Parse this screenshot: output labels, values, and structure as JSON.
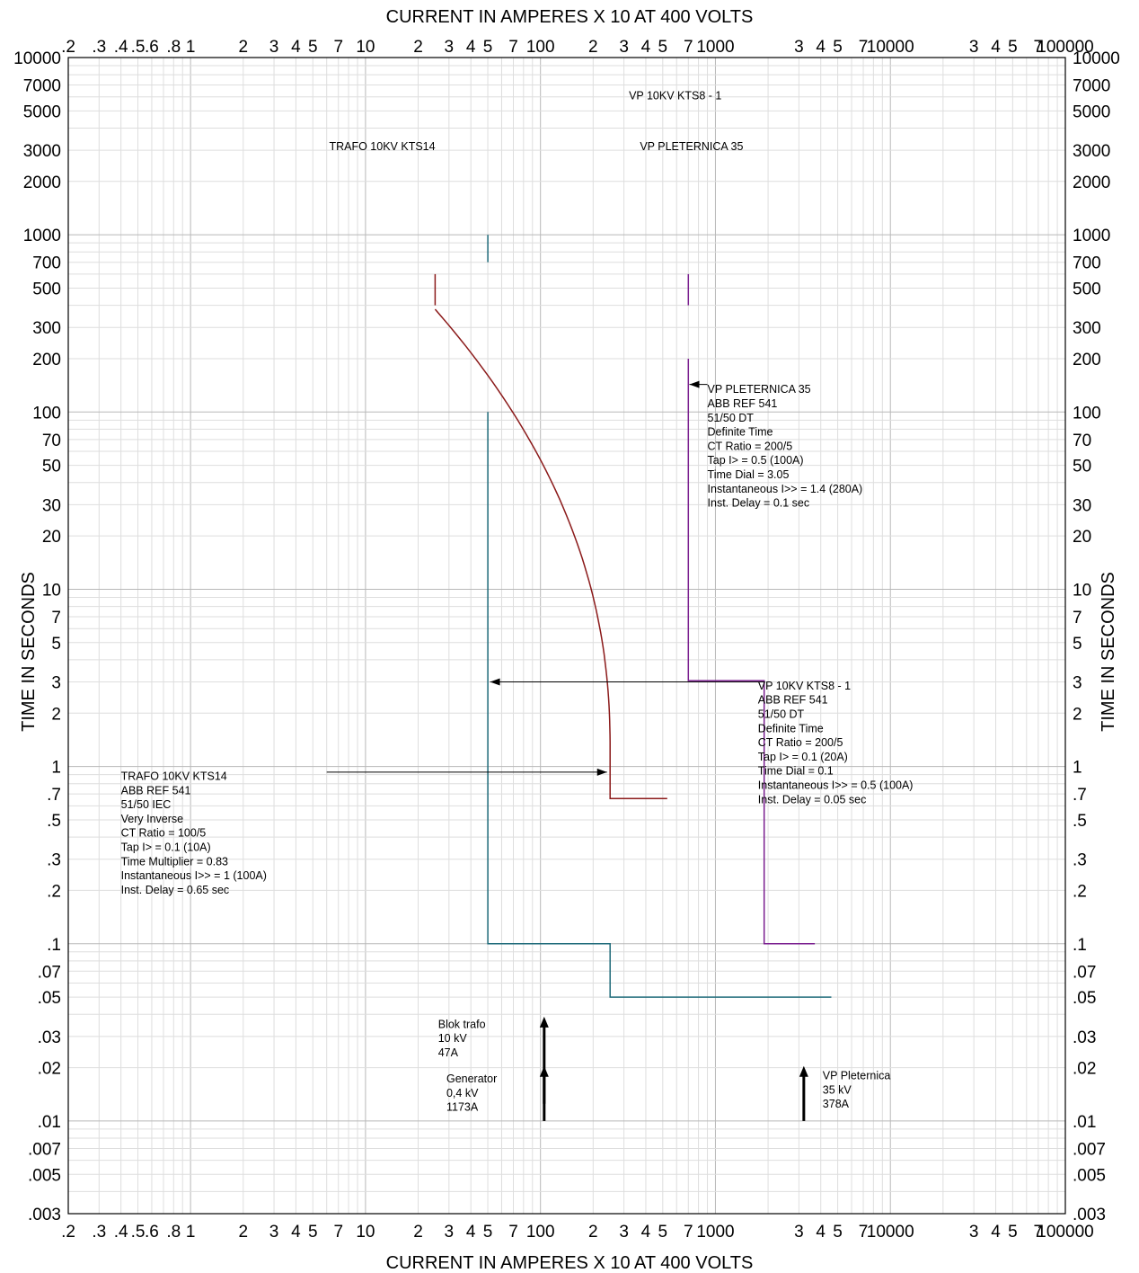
{
  "chart_data": {
    "type": "line",
    "x_scale": "log",
    "y_scale": "log",
    "xlim": [
      0.2,
      100000
    ],
    "ylim": [
      0.003,
      10000
    ],
    "grid": true,
    "x_axis_title": "CURRENT IN AMPERES X 10 AT 400 VOLTS",
    "y_axis_title": "TIME IN SECONDS",
    "x_tick_labels": [
      {
        "v": 0.2,
        "t": ".2"
      },
      {
        "v": 0.3,
        "t": ".3"
      },
      {
        "v": 0.4,
        "t": ".4"
      },
      {
        "v": 0.5,
        "t": ".5"
      },
      {
        "v": 0.6,
        "t": ".6"
      },
      {
        "v": 0.8,
        "t": ".8"
      },
      {
        "v": 1,
        "t": "1"
      },
      {
        "v": 2,
        "t": "2"
      },
      {
        "v": 3,
        "t": "3"
      },
      {
        "v": 4,
        "t": "4"
      },
      {
        "v": 5,
        "t": "5"
      },
      {
        "v": 7,
        "t": "7"
      },
      {
        "v": 10,
        "t": "10"
      },
      {
        "v": 20,
        "t": "2"
      },
      {
        "v": 30,
        "t": "3"
      },
      {
        "v": 40,
        "t": "4"
      },
      {
        "v": 50,
        "t": "5"
      },
      {
        "v": 70,
        "t": "7"
      },
      {
        "v": 100,
        "t": "100"
      },
      {
        "v": 200,
        "t": "2"
      },
      {
        "v": 300,
        "t": "3"
      },
      {
        "v": 400,
        "t": "4"
      },
      {
        "v": 500,
        "t": "5"
      },
      {
        "v": 700,
        "t": "7"
      },
      {
        "v": 1000,
        "t": "1000"
      },
      {
        "v": 3000,
        "t": "3"
      },
      {
        "v": 4000,
        "t": "4"
      },
      {
        "v": 5000,
        "t": "5"
      },
      {
        "v": 7000,
        "t": "7"
      },
      {
        "v": 10000,
        "t": "10000"
      },
      {
        "v": 30000,
        "t": "3"
      },
      {
        "v": 40000,
        "t": "4"
      },
      {
        "v": 50000,
        "t": "5"
      },
      {
        "v": 70000,
        "t": "7"
      },
      {
        "v": 100000,
        "t": "100000"
      }
    ],
    "y_tick_labels": [
      {
        "v": 10000,
        "t": "10000"
      },
      {
        "v": 7000,
        "t": "7000"
      },
      {
        "v": 5000,
        "t": "5000"
      },
      {
        "v": 3000,
        "t": "3000"
      },
      {
        "v": 2000,
        "t": "2000"
      },
      {
        "v": 1000,
        "t": "1000"
      },
      {
        "v": 700,
        "t": "700"
      },
      {
        "v": 500,
        "t": "500"
      },
      {
        "v": 300,
        "t": "300"
      },
      {
        "v": 200,
        "t": "200"
      },
      {
        "v": 100,
        "t": "100"
      },
      {
        "v": 70,
        "t": "70"
      },
      {
        "v": 50,
        "t": "50"
      },
      {
        "v": 30,
        "t": "30"
      },
      {
        "v": 20,
        "t": "20"
      },
      {
        "v": 10,
        "t": "10"
      },
      {
        "v": 7,
        "t": "7"
      },
      {
        "v": 5,
        "t": "5"
      },
      {
        "v": 3,
        "t": "3"
      },
      {
        "v": 2,
        "t": "2"
      },
      {
        "v": 1,
        "t": "1"
      },
      {
        "v": 0.7,
        "t": ".7"
      },
      {
        "v": 0.5,
        "t": ".5"
      },
      {
        "v": 0.3,
        "t": ".3"
      },
      {
        "v": 0.2,
        "t": ".2"
      },
      {
        "v": 0.1,
        "t": ".1"
      },
      {
        "v": 0.07,
        "t": ".07"
      },
      {
        "v": 0.05,
        "t": ".05"
      },
      {
        "v": 0.03,
        "t": ".03"
      },
      {
        "v": 0.02,
        "t": ".02"
      },
      {
        "v": 0.01,
        "t": ".01"
      },
      {
        "v": 0.007,
        "t": ".007"
      },
      {
        "v": 0.005,
        "t": ".005"
      },
      {
        "v": 0.003,
        "t": ".003"
      }
    ],
    "series": [
      {
        "key": "trafo",
        "color": "#8b1a1a",
        "x": [
          25.0,
          25.0
        ],
        "y": [
          600,
          400
        ],
        "curve": {
          "x_start": 25.0,
          "x_end": 250,
          "y_start": 380,
          "y_end": 1.25
        },
        "x2": [
          250,
          250,
          530
        ],
        "y2": [
          1.25,
          0.66,
          0.66
        ]
      },
      {
        "key": "kts8",
        "color": "#1f6b7a",
        "x": [
          50.0,
          50.0,
          250,
          250,
          4600
        ],
        "y": [
          100,
          0.1,
          0.1,
          0.05,
          0.05
        ],
        "top_x": [
          50.0,
          50.0
        ],
        "top_y": [
          1000,
          700
        ]
      },
      {
        "key": "pleternica",
        "color": "#7a1f8f",
        "x": [
          700,
          700,
          1900,
          1900,
          3700
        ],
        "y": [
          200,
          3.05,
          3.05,
          0.1,
          0.1
        ],
        "top_x": [
          700,
          700
        ],
        "top_y": [
          600,
          400
        ]
      }
    ],
    "arrows": [
      {
        "from_x": 6.0,
        "from_y": 0.93,
        "to_x": 240,
        "to_y": 0.93
      },
      {
        "from_x": 1900,
        "from_y": 3.0,
        "to_x": 51.5,
        "to_y": 3.0
      },
      {
        "from_x": 900,
        "from_y": 143,
        "to_x": 710,
        "to_y": 143
      }
    ],
    "current_markers": [
      {
        "x": 105,
        "y_from": 0.0125,
        "y_to": 0.037
      },
      {
        "x": 105,
        "y_from": 0.01,
        "y_to": 0.0195
      },
      {
        "x": 3200,
        "y_from": 0.01,
        "y_to": 0.0195
      }
    ],
    "top_labels": [
      {
        "text": "VP 10KV KTS8 - 1",
        "x": 320,
        "y": 5800
      },
      {
        "text": "TRAFO 10KV KTS14",
        "x": 6.2,
        "y": 3000
      },
      {
        "text": "VP PLETERNICA 35",
        "x": 370,
        "y": 3000
      }
    ],
    "annotations": [
      {
        "key": "pleternica",
        "x": 900,
        "y": 128,
        "lines": [
          "VP PLETERNICA 35",
          "ABB REF 541",
          "51/50 DT",
          "Definite Time",
          "CT Ratio = 200/5",
          "Tap  I> = 0.5 (100A)",
          "Time Dial = 3.05",
          "Instantaneous I>> = 1.4 (280A)",
          "Inst. Delay = 0.1 sec"
        ]
      },
      {
        "key": "kts8",
        "x": 1750,
        "y": 2.72,
        "lines": [
          "VP 10KV KTS8 - 1",
          "ABB REF 541",
          "51/50 DT",
          "Definite Time",
          "CT Ratio = 200/5",
          "Tap  I> = 0.1 (20A)",
          "Time Dial = 0.1",
          "Instantaneous I>> = 0.5 (100A)",
          "Inst. Delay = 0.05 sec"
        ]
      },
      {
        "key": "trafo",
        "x": 0.4,
        "y": 0.84,
        "lines": [
          "TRAFO 10KV KTS14",
          "ABB REF 541",
          "51/50 IEC",
          "Very Inverse",
          "CT Ratio = 100/5",
          "Tap  I> = 0.1 (10A)",
          "Time Multiplier = 0.83",
          "Instantaneous I>> = 1 (100A)",
          "Inst. Delay = 0.65 sec"
        ]
      },
      {
        "key": "blok-trafo",
        "x": 26,
        "y": 0.0335,
        "lines": [
          "Blok trafo",
          "10 kV",
          "47A"
        ]
      },
      {
        "key": "generator",
        "x": 29,
        "y": 0.0165,
        "lines": [
          "Generator",
          "0,4 kV",
          "1173A"
        ]
      },
      {
        "key": "vp-pleternica-fault",
        "x": 4100,
        "y": 0.0172,
        "lines": [
          "VP Pleternica",
          "35 kV",
          "378A"
        ]
      }
    ]
  }
}
